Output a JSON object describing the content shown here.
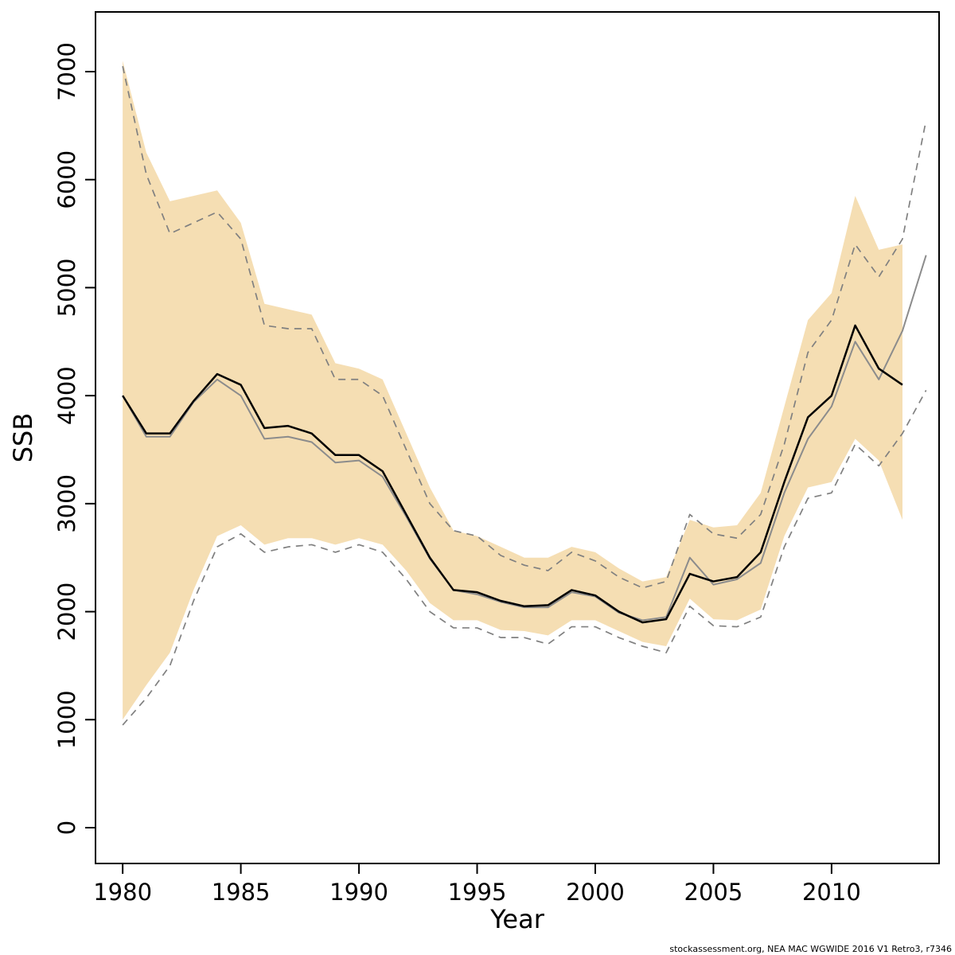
{
  "chart_data": {
    "type": "line",
    "title": "",
    "xlabel": "Year",
    "ylabel": "SSB",
    "footer": "stockassessment.org, NEA MAC WGWIDE 2016 V1 Retro3, r7346",
    "xlim": [
      1978.85,
      2014.55
    ],
    "ylim": [
      0,
      7000
    ],
    "grid": false,
    "legend": "none",
    "x_ticks": [
      1980,
      1985,
      1990,
      1995,
      2000,
      2005,
      2010
    ],
    "y_ticks": [
      0,
      1000,
      2000,
      3000,
      4000,
      5000,
      6000,
      7000
    ],
    "band": {
      "name": "confidence-band",
      "color": "#f5deb3",
      "x": [
        1980,
        1981,
        1982,
        1983,
        1984,
        1985,
        1986,
        1987,
        1988,
        1989,
        1990,
        1991,
        1992,
        1993,
        1994,
        1995,
        1996,
        1997,
        1998,
        1999,
        2000,
        2001,
        2002,
        2003,
        2004,
        2005,
        2006,
        2007,
        2008,
        2009,
        2010,
        2011,
        2012,
        2013
      ],
      "upper": [
        7100,
        6250,
        5800,
        5850,
        5900,
        5600,
        4850,
        4800,
        4750,
        4300,
        4250,
        4150,
        3650,
        3150,
        2750,
        2700,
        2600,
        2500,
        2500,
        2600,
        2550,
        2400,
        2280,
        2320,
        2850,
        2780,
        2800,
        3100,
        3900,
        4700,
        4950,
        5850,
        5350,
        5400
      ],
      "lower": [
        1000,
        1320,
        1620,
        2200,
        2700,
        2800,
        2620,
        2680,
        2680,
        2620,
        2680,
        2620,
        2380,
        2080,
        1920,
        1920,
        1830,
        1820,
        1780,
        1920,
        1920,
        1820,
        1720,
        1680,
        2120,
        1930,
        1920,
        2020,
        2700,
        3150,
        3200,
        3600,
        3400,
        2850
      ]
    },
    "series": [
      {
        "name": "retro-ci-upper",
        "color": "#808080",
        "width": 1.7,
        "dash": "9,7",
        "x": [
          1980,
          1981,
          1982,
          1983,
          1984,
          1985,
          1986,
          1987,
          1988,
          1989,
          1990,
          1991,
          1992,
          1993,
          1994,
          1995,
          1996,
          1997,
          1998,
          1999,
          2000,
          2001,
          2002,
          2003,
          2004,
          2005,
          2006,
          2007,
          2008,
          2009,
          2010,
          2011,
          2012,
          2013,
          2014
        ],
        "values": [
          7050,
          6050,
          5500,
          5600,
          5700,
          5450,
          4650,
          4620,
          4620,
          4150,
          4150,
          4000,
          3500,
          3000,
          2750,
          2700,
          2520,
          2430,
          2380,
          2550,
          2470,
          2320,
          2220,
          2280,
          2900,
          2720,
          2680,
          2900,
          3550,
          4400,
          4700,
          5400,
          5100,
          5450,
          6550
        ]
      },
      {
        "name": "retro-ci-lower",
        "color": "#808080",
        "width": 1.7,
        "dash": "9,7",
        "x": [
          1980,
          1981,
          1982,
          1983,
          1984,
          1985,
          1986,
          1987,
          1988,
          1989,
          1990,
          1991,
          1992,
          1993,
          1994,
          1995,
          1996,
          1997,
          1998,
          1999,
          2000,
          2001,
          2002,
          2003,
          2004,
          2005,
          2006,
          2007,
          2008,
          2009,
          2010,
          2011,
          2012,
          2013,
          2014
        ],
        "values": [
          950,
          1200,
          1500,
          2100,
          2600,
          2720,
          2550,
          2600,
          2620,
          2550,
          2620,
          2550,
          2300,
          2000,
          1850,
          1850,
          1760,
          1760,
          1700,
          1860,
          1860,
          1760,
          1680,
          1620,
          2050,
          1870,
          1860,
          1950,
          2600,
          3050,
          3100,
          3550,
          3350,
          3650,
          4050
        ]
      },
      {
        "name": "retro-run",
        "color": "#8c8c8c",
        "width": 2,
        "dash": "",
        "x": [
          1980,
          1981,
          1982,
          1983,
          1984,
          1985,
          1986,
          1987,
          1988,
          1989,
          1990,
          1991,
          1992,
          1993,
          1994,
          1995,
          1996,
          1997,
          1998,
          1999,
          2000,
          2001,
          2002,
          2003,
          2004,
          2005,
          2006,
          2007,
          2008,
          2009,
          2010,
          2011,
          2012,
          2013,
          2014
        ],
        "values": [
          4000,
          3620,
          3620,
          3940,
          4150,
          4000,
          3600,
          3620,
          3570,
          3380,
          3400,
          3250,
          2880,
          2490,
          2200,
          2160,
          2090,
          2040,
          2040,
          2180,
          2140,
          1990,
          1920,
          1950,
          2500,
          2250,
          2300,
          2450,
          3100,
          3600,
          3900,
          4500,
          4150,
          4600,
          5300
        ]
      },
      {
        "name": "estimate",
        "color": "#000000",
        "width": 2.5,
        "dash": "",
        "x": [
          1980,
          1981,
          1982,
          1983,
          1984,
          1985,
          1986,
          1987,
          1988,
          1989,
          1990,
          1991,
          1992,
          1993,
          1994,
          1995,
          1996,
          1997,
          1998,
          1999,
          2000,
          2001,
          2002,
          2003,
          2004,
          2005,
          2006,
          2007,
          2008,
          2009,
          2010,
          2011,
          2012,
          2013
        ],
        "values": [
          4000,
          3650,
          3650,
          3950,
          4200,
          4100,
          3700,
          3720,
          3650,
          3450,
          3450,
          3300,
          2900,
          2500,
          2200,
          2180,
          2100,
          2050,
          2060,
          2200,
          2150,
          2000,
          1900,
          1930,
          2350,
          2280,
          2320,
          2550,
          3200,
          3800,
          4000,
          4650,
          4250,
          4100
        ]
      }
    ]
  }
}
